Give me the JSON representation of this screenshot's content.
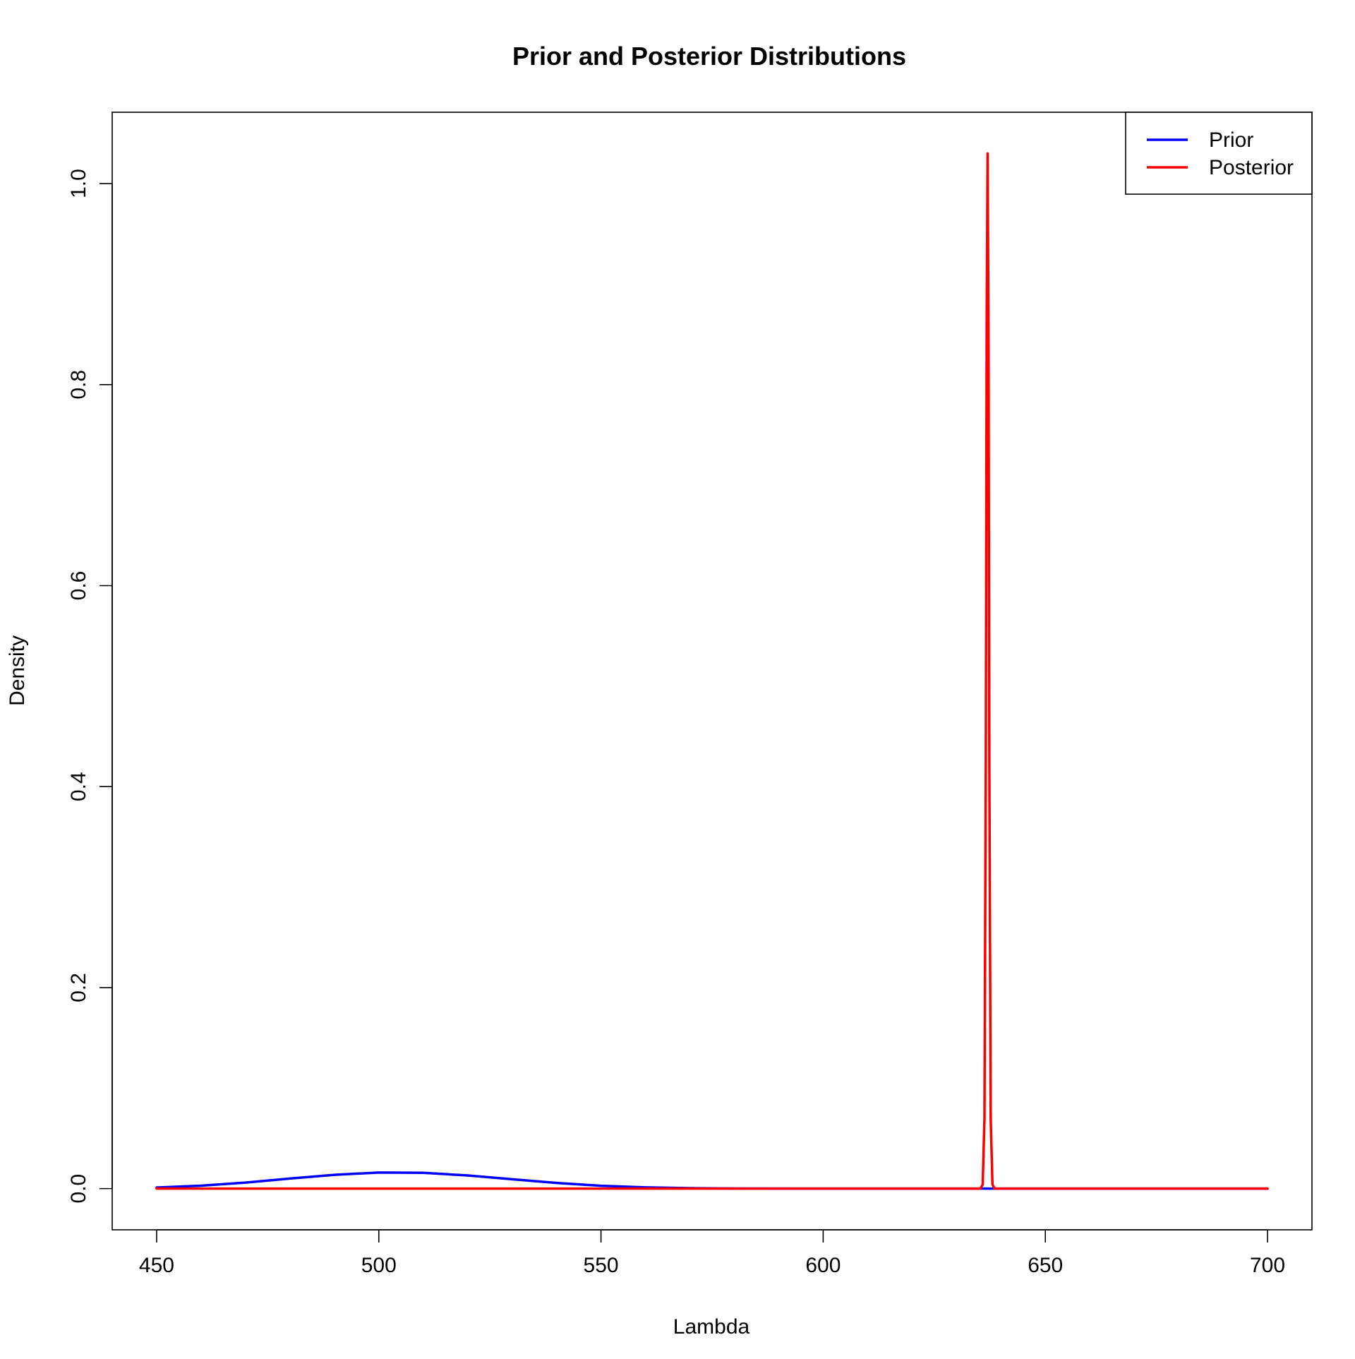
{
  "chart_data": {
    "type": "line",
    "title": "Prior and Posterior Distributions",
    "xlabel": "Lambda",
    "ylabel": "Density",
    "xlim": [
      440,
      710
    ],
    "ylim": [
      -0.041,
      1.071
    ],
    "x_ticks": [
      450,
      500,
      550,
      600,
      650,
      700
    ],
    "x_tick_labels": [
      "450",
      "500",
      "550",
      "600",
      "650",
      "700"
    ],
    "y_ticks": [
      0.0,
      0.2,
      0.4,
      0.6,
      0.8,
      1.0
    ],
    "y_tick_labels": [
      "0.0",
      "0.2",
      "0.4",
      "0.6",
      "0.8",
      "1.0"
    ],
    "grid": false,
    "legend_position": "top-right",
    "series": [
      {
        "name": "Prior",
        "color": "#0000ff",
        "x": [
          450,
          460,
          470,
          480,
          490,
          500,
          510,
          520,
          530,
          540,
          550,
          560,
          570,
          580,
          600,
          650,
          700
        ],
        "y": [
          0.0011,
          0.0029,
          0.006,
          0.01,
          0.0137,
          0.016,
          0.0157,
          0.0131,
          0.0093,
          0.0056,
          0.0028,
          0.0012,
          0.0004,
          0.0001,
          0.0,
          0.0,
          0.0
        ]
      },
      {
        "name": "Posterior",
        "color": "#ff0000",
        "x": [
          450,
          600,
          635.4,
          635.9,
          636.3,
          636.6,
          636.8,
          637.0,
          637.2,
          637.4,
          637.7,
          638.1,
          638.6,
          650,
          700
        ],
        "y": [
          0.0,
          0.0,
          0.0,
          0.004,
          0.07,
          0.42,
          0.86,
          1.03,
          0.86,
          0.42,
          0.07,
          0.004,
          0.0,
          0.0,
          0.0
        ]
      }
    ]
  }
}
